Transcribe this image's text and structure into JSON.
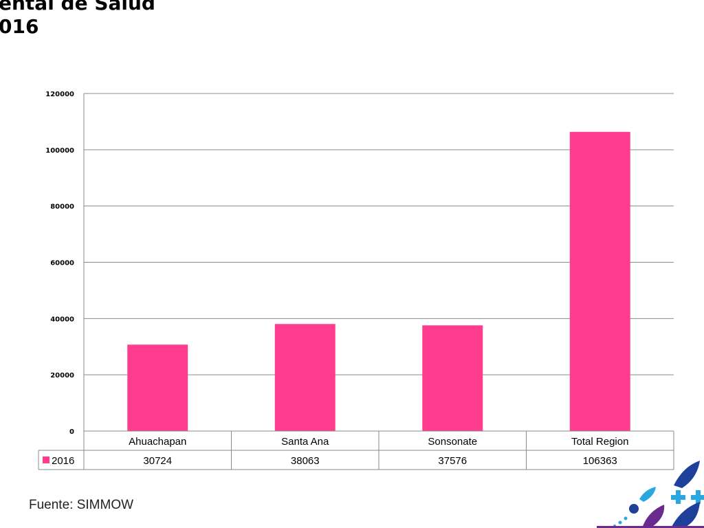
{
  "header": {
    "title_line1": "ental de Salud",
    "title_line2": "016"
  },
  "chart_data": {
    "type": "bar",
    "categories": [
      "Ahuachapan",
      "Santa Ana",
      "Sonsonate",
      "Total Region"
    ],
    "series": [
      {
        "name": "2016",
        "values": [
          30724,
          38063,
          37576,
          106363
        ],
        "color": "#ff3c8e"
      }
    ],
    "ylim": [
      0,
      120000
    ],
    "yticks": [
      "0",
      "20000",
      "40000",
      "60000",
      "80000",
      "100000",
      "120000"
    ],
    "grid": true,
    "legend": "data-table-left",
    "data_table": true
  },
  "footer": {
    "source": "Fuente: SIMMOW"
  },
  "logo": {
    "icon": "ministry-health-logo-icon",
    "colors": [
      "#1e3f9a",
      "#2aa7e0",
      "#6a2a8e"
    ]
  }
}
